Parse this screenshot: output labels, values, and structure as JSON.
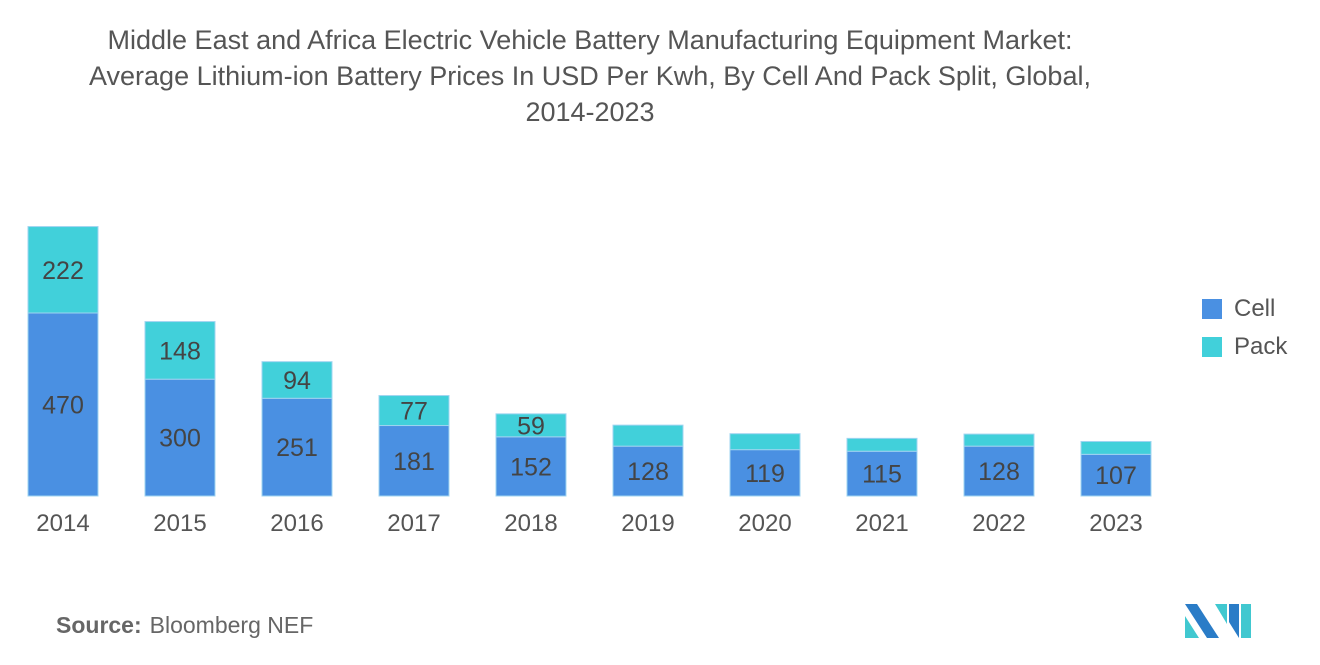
{
  "title_lines": [
    "Middle East and Africa Electric Vehicle Battery Manufacturing Equipment Market:",
    "Average Lithium-ion Battery Prices In USD Per Kwh, By Cell And Pack Split, Global,",
    "2014-2023"
  ],
  "source": {
    "label": "Source:",
    "value": "Bloomberg NEF"
  },
  "colors": {
    "cell": "#4a90e2",
    "pack": "#41d0da",
    "text": "#444444"
  },
  "chart_data": {
    "type": "bar",
    "stacked": true,
    "title": "Middle East and Africa Electric Vehicle Battery Manufacturing Equipment Market: Average Lithium-ion Battery Prices In USD Per Kwh, By Cell And Pack Split, Global, 2014-2023",
    "categories": [
      "2014",
      "2015",
      "2016",
      "2017",
      "2018",
      "2019",
      "2020",
      "2021",
      "2022",
      "2023"
    ],
    "series": [
      {
        "name": "Cell",
        "values": [
          470,
          300,
          251,
          181,
          152,
          128,
          119,
          115,
          128,
          107
        ],
        "labels_shown": [
          true,
          true,
          true,
          true,
          true,
          true,
          true,
          true,
          true,
          true
        ]
      },
      {
        "name": "Pack",
        "values": [
          222,
          148,
          94,
          77,
          59,
          54,
          41,
          33,
          31,
          33
        ],
        "labels_shown": [
          true,
          true,
          true,
          true,
          true,
          false,
          false,
          false,
          false,
          false
        ]
      }
    ],
    "ylim": [
      0,
      700
    ],
    "grid": false,
    "legend": "right",
    "xlabel": "",
    "ylabel": ""
  }
}
